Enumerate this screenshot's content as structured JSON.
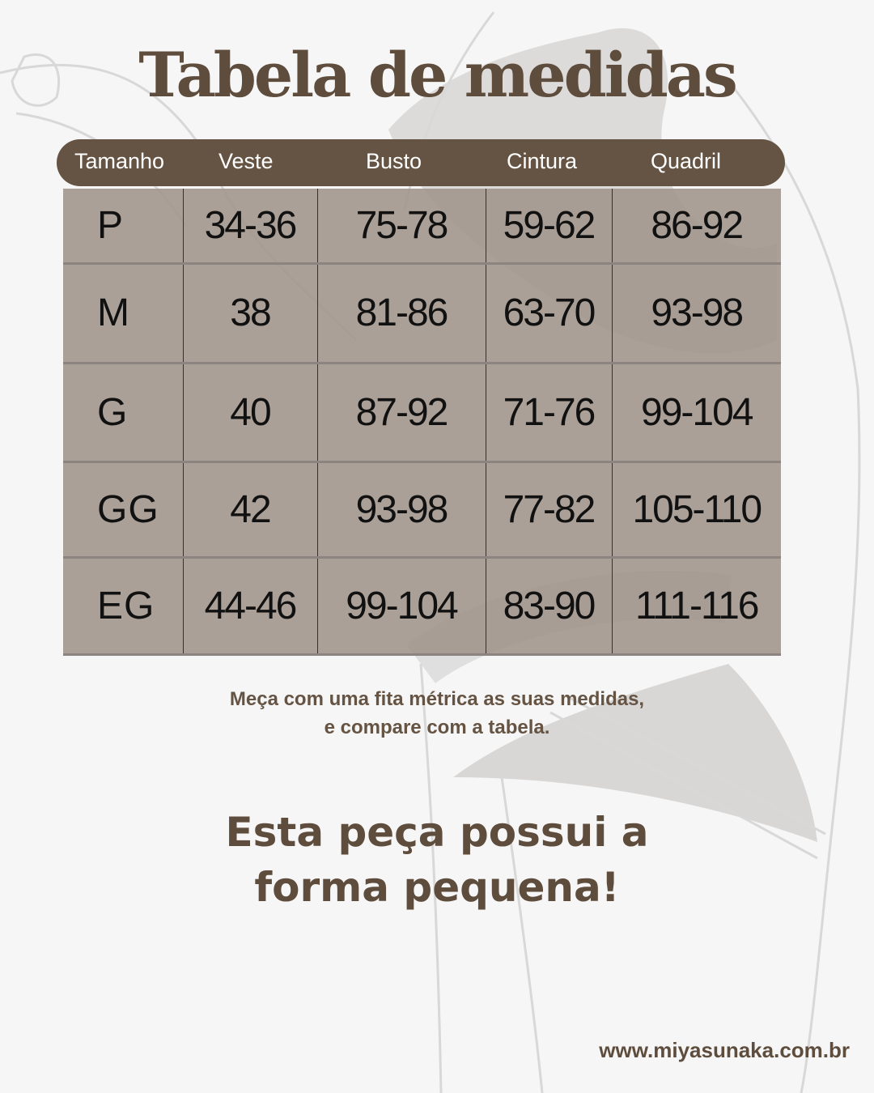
{
  "title": "Tabela de medidas",
  "columns": [
    "Tamanho",
    "Veste",
    "Busto",
    "Cintura",
    "Quadril"
  ],
  "rows": [
    [
      "P",
      "34-36",
      "75-78",
      "59-62",
      "86-92"
    ],
    [
      "M",
      "38",
      "81-86",
      "63-70",
      "93-98"
    ],
    [
      "G",
      "40",
      "87-92",
      "71-76",
      "99-104"
    ],
    [
      "GG",
      "42",
      "93-98",
      "77-82",
      "105-110"
    ],
    [
      "EG",
      "44-46",
      "99-104",
      "83-90",
      "111-116"
    ]
  ],
  "note": {
    "line1": "Meça com uma fita métrica as suas medidas,",
    "line2": "e compare com a tabela."
  },
  "highlight": {
    "line1": "Esta peça possui a",
    "line2": "forma pequena!"
  },
  "website": "www.miyasunaka.com.br",
  "colors": {
    "header": "#655443",
    "text": "#5e4c3c",
    "cell": "#a89d94",
    "background": "#f6f6f6"
  }
}
